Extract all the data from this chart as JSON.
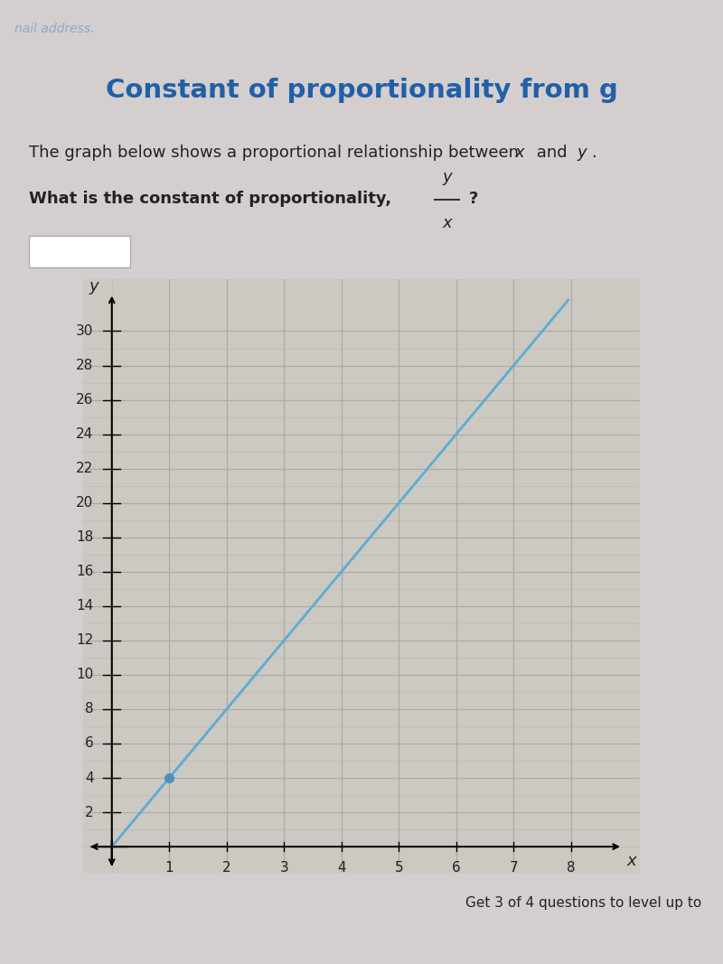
{
  "title": "Constant of proportionality from g",
  "desc_text": "The graph below shows a proportional relationship between ",
  "desc_x": " and ",
  "question_bold": "What is the constant of proportionality, ",
  "frac_num": "y",
  "frac_den": "x",
  "question_end": "?",
  "dot_x": 1,
  "dot_y": 4,
  "line_color": "#5bacd4",
  "dot_color": "#4a8fc0",
  "xlim": [
    -0.5,
    9.2
  ],
  "ylim": [
    -1.5,
    33.0
  ],
  "xticks": [
    1,
    2,
    3,
    4,
    5,
    6,
    7,
    8
  ],
  "yticks": [
    2,
    4,
    6,
    8,
    10,
    12,
    14,
    16,
    18,
    20,
    22,
    24,
    26,
    28,
    30
  ],
  "xlabel": "x",
  "ylabel": "y",
  "page_bg": "#d4cece",
  "content_bg": "#d4cece",
  "header_bg": "#2c3e5a",
  "grid_minor_color": "#c0bcb5",
  "grid_major_color": "#aeaaa3",
  "graph_bg": "#ccc8c2",
  "answer_box_bg": "#ffffff",
  "answer_box_edge": "#aaaaaa",
  "font_color": "#222222",
  "title_color": "#2060a8",
  "header_addr_color": "#8aabcc",
  "bottom_text": "Get 3 of 4 questions to level up to",
  "title_fontsize": 21,
  "body_fontsize": 13,
  "tick_fontsize": 11
}
